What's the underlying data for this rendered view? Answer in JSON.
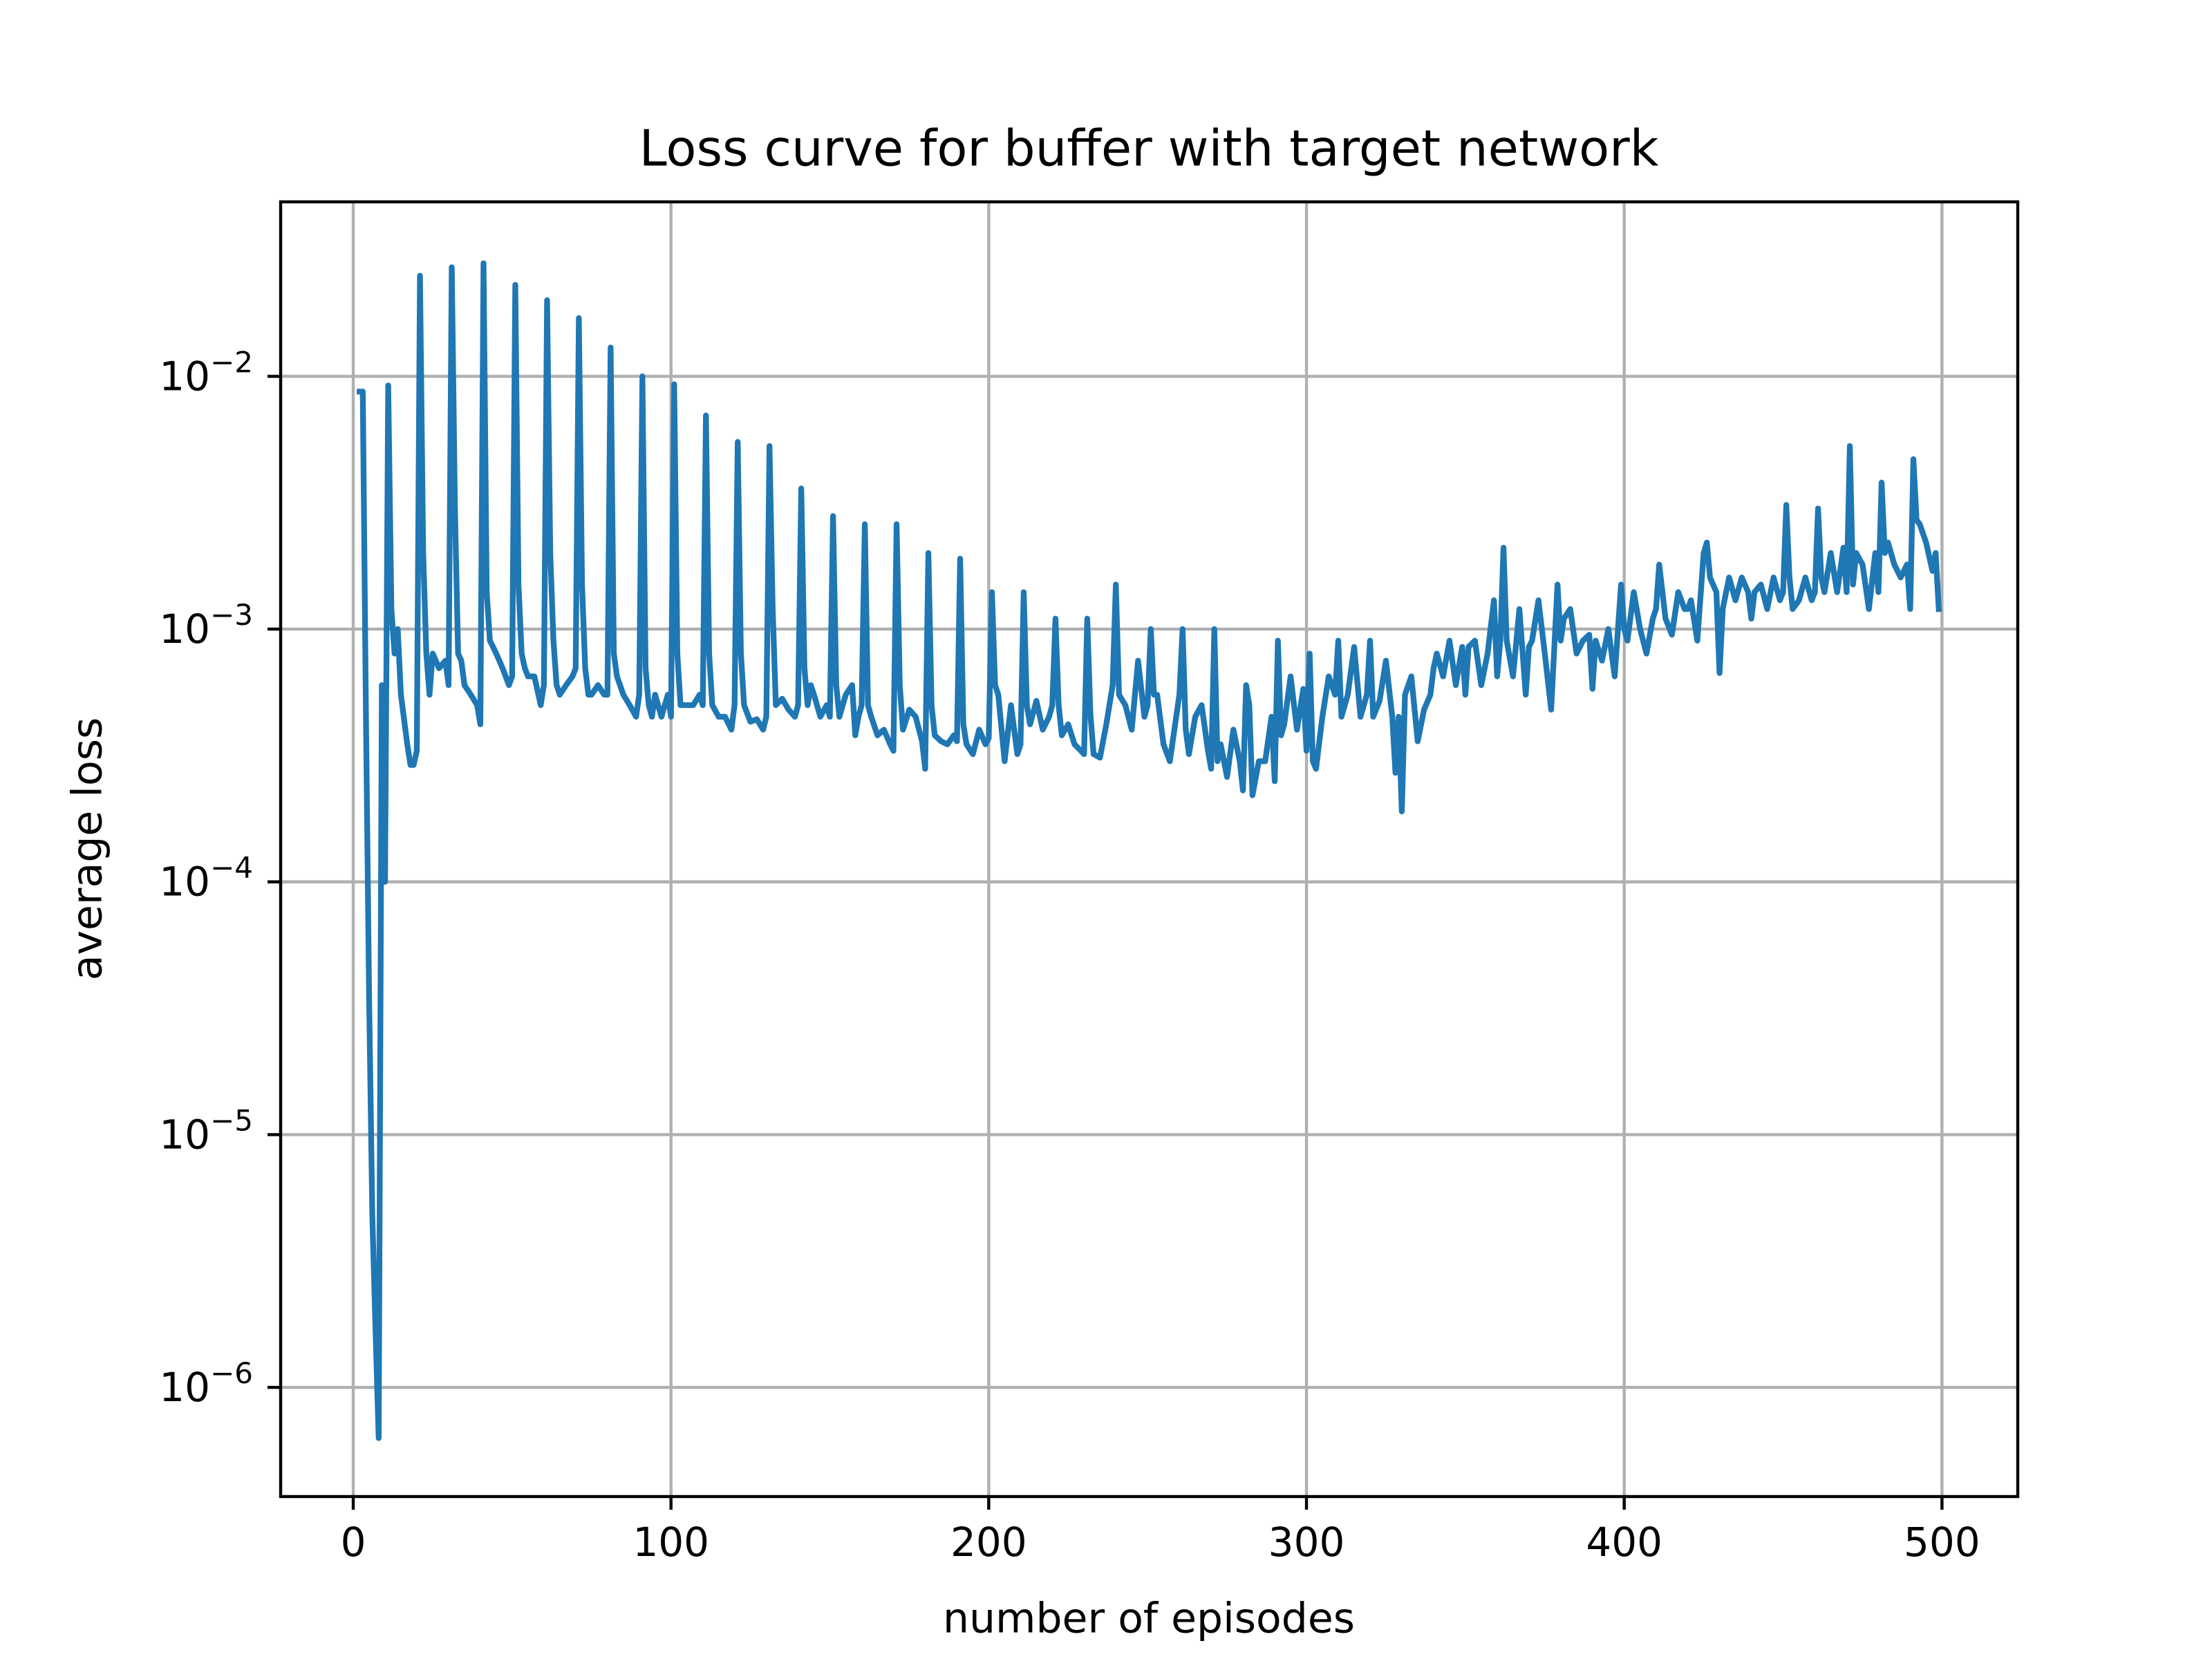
{
  "chart_data": {
    "type": "line",
    "title": "Loss curve for buffer with target network",
    "xlabel": "number of episodes",
    "ylabel": "average loss",
    "yscale": "log",
    "grid": true,
    "xlim": [
      -22.85,
      523.85
    ],
    "ylim": [
      3.7e-07,
      0.049
    ],
    "xticks": [
      0,
      100,
      200,
      300,
      400,
      500
    ],
    "yticks": [
      {
        "value": 1e-06,
        "label": "10−6"
      },
      {
        "value": 1e-05,
        "label": "10−5"
      },
      {
        "value": 0.0001,
        "label": "10−4"
      },
      {
        "value": 0.001,
        "label": "10−3"
      },
      {
        "value": 0.01,
        "label": "10−2"
      }
    ],
    "series": [
      {
        "color": "#1f77b4",
        "x": [
          2,
          3,
          4,
          5,
          6,
          7,
          8,
          9,
          10,
          11,
          12,
          13,
          14,
          15,
          17,
          18,
          19,
          20,
          21,
          22,
          23,
          24,
          25,
          27,
          29,
          30,
          31,
          32,
          33,
          34,
          35,
          37,
          39,
          40,
          41,
          42,
          43,
          44,
          45,
          47,
          49,
          50,
          51,
          52,
          53,
          54,
          55,
          57,
          59,
          60,
          61,
          62,
          63,
          64,
          65,
          67,
          69,
          70,
          71,
          72,
          73,
          74,
          75,
          77,
          79,
          80,
          81,
          82,
          83,
          85,
          87,
          89,
          90,
          91,
          92,
          93,
          94,
          95,
          97,
          99,
          100,
          101,
          102,
          103,
          105,
          107,
          109,
          110,
          111,
          112,
          113,
          115,
          117,
          119,
          120,
          121,
          122,
          123,
          125,
          127,
          129,
          130,
          131,
          132,
          133,
          135,
          137,
          139,
          140,
          141,
          142,
          143,
          144,
          145,
          147,
          149,
          150,
          151,
          152,
          153,
          155,
          157,
          158,
          159,
          160,
          161,
          162,
          163,
          165,
          167,
          169,
          170,
          171,
          172,
          173,
          175,
          177,
          179,
          180,
          181,
          182,
          183,
          185,
          187,
          189,
          190,
          191,
          192,
          193,
          195,
          197,
          199,
          200,
          201,
          202,
          203,
          205,
          207,
          209,
          210,
          211,
          212,
          213,
          215,
          217,
          219,
          220,
          221,
          222,
          223,
          225,
          227,
          229,
          230,
          231,
          232,
          233,
          235,
          237,
          239,
          240,
          241,
          243,
          245,
          247,
          249,
          250,
          251,
          252,
          253,
          255,
          257,
          259,
          260,
          261,
          262,
          263,
          265,
          267,
          269,
          270,
          271,
          272,
          273,
          275,
          277,
          279,
          280,
          281,
          282,
          283,
          285,
          287,
          289,
          290,
          291,
          292,
          293,
          295,
          297,
          299,
          300,
          301,
          302,
          303,
          305,
          307,
          309,
          310,
          311,
          313,
          315,
          317,
          319,
          320,
          321,
          323,
          325,
          327,
          328,
          329,
          330,
          331,
          333,
          335,
          337,
          339,
          340,
          341,
          343,
          345,
          347,
          349,
          350,
          351,
          353,
          355,
          357,
          359,
          360,
          361,
          362,
          363,
          365,
          367,
          369,
          370,
          371,
          373,
          375,
          377,
          379,
          380,
          381,
          383,
          385,
          387,
          389,
          390,
          391,
          393,
          395,
          397,
          399,
          400,
          401,
          403,
          405,
          407,
          409,
          410,
          411,
          413,
          415,
          417,
          419,
          420,
          421,
          423,
          425,
          426,
          427,
          429,
          430,
          431,
          433,
          435,
          437,
          439,
          440,
          441,
          443,
          445,
          447,
          449,
          450,
          451,
          452,
          453,
          455,
          457,
          459,
          460,
          461,
          462,
          463,
          465,
          467,
          469,
          470,
          471,
          472,
          473,
          475,
          477,
          479,
          480,
          481,
          482,
          483,
          485,
          487,
          489,
          490,
          491,
          492,
          493,
          495,
          497,
          498,
          499
        ],
        "values": [
          0.0087,
          0.0087,
          0.00045,
          3.4e-05,
          4.8e-06,
          1.7e-06,
          6.3e-07,
          0.0006,
          0.0001,
          0.0092,
          0.0012,
          0.0008,
          0.001,
          0.00055,
          0.00035,
          0.00029,
          0.00029,
          0.00033,
          0.025,
          0.002,
          0.0008,
          0.00055,
          0.0008,
          0.0007,
          0.00075,
          0.0006,
          0.027,
          0.003,
          0.0008,
          0.00075,
          0.0006,
          0.00055,
          0.0005,
          0.00042,
          0.028,
          0.0014,
          0.0009,
          0.00085,
          0.0008,
          0.0007,
          0.0006,
          0.00065,
          0.023,
          0.0015,
          0.0008,
          0.0007,
          0.00065,
          0.00065,
          0.0005,
          0.0006,
          0.02,
          0.002,
          0.0009,
          0.0006,
          0.00055,
          0.0006,
          0.00065,
          0.0007,
          0.017,
          0.0015,
          0.0007,
          0.00055,
          0.00055,
          0.0006,
          0.00055,
          0.00055,
          0.013,
          0.0008,
          0.00065,
          0.00055,
          0.0005,
          0.00045,
          0.00055,
          0.01,
          0.0007,
          0.0005,
          0.00045,
          0.00055,
          0.00045,
          0.00055,
          0.00045,
          0.0093,
          0.0008,
          0.0005,
          0.0005,
          0.0005,
          0.00055,
          0.0005,
          0.007,
          0.0008,
          0.0005,
          0.00045,
          0.00045,
          0.0004,
          0.0005,
          0.0055,
          0.0008,
          0.0005,
          0.00043,
          0.00044,
          0.0004,
          0.00045,
          0.0053,
          0.0012,
          0.0005,
          0.00053,
          0.00048,
          0.00045,
          0.0005,
          0.0036,
          0.0007,
          0.0005,
          0.0006,
          0.00055,
          0.00045,
          0.0005,
          0.00045,
          0.0028,
          0.0006,
          0.00045,
          0.00055,
          0.0006,
          0.00038,
          0.00045,
          0.0005,
          0.0026,
          0.0005,
          0.00045,
          0.00038,
          0.0004,
          0.00035,
          0.00033,
          0.0026,
          0.0006,
          0.0004,
          0.00048,
          0.00045,
          0.00036,
          0.00028,
          0.002,
          0.0005,
          0.00038,
          0.00036,
          0.00035,
          0.00038,
          0.00036,
          0.0019,
          0.00042,
          0.00035,
          0.00032,
          0.0004,
          0.00035,
          0.00037,
          0.0014,
          0.0006,
          0.00055,
          0.0003,
          0.0005,
          0.00032,
          0.00035,
          0.0014,
          0.0005,
          0.00042,
          0.00052,
          0.0004,
          0.00045,
          0.0005,
          0.0011,
          0.0005,
          0.00038,
          0.00042,
          0.00035,
          0.00033,
          0.00032,
          0.0011,
          0.00046,
          0.00032,
          0.00031,
          0.00042,
          0.0006,
          0.0015,
          0.00055,
          0.0005,
          0.0004,
          0.00075,
          0.00045,
          0.0005,
          0.001,
          0.00055,
          0.00055,
          0.00035,
          0.0003,
          0.00045,
          0.00055,
          0.001,
          0.0004,
          0.00032,
          0.00045,
          0.0005,
          0.00033,
          0.00028,
          0.001,
          0.0003,
          0.00035,
          0.00026,
          0.0004,
          0.0003,
          0.00023,
          0.0006,
          0.0005,
          0.00022,
          0.0003,
          0.0003,
          0.00045,
          0.00025,
          0.0009,
          0.00038,
          0.00042,
          0.00065,
          0.0004,
          0.00058,
          0.00033,
          0.0008,
          0.0003,
          0.00028,
          0.00045,
          0.00065,
          0.00055,
          0.0009,
          0.00045,
          0.00055,
          0.00085,
          0.00045,
          0.00055,
          0.0009,
          0.00045,
          0.00052,
          0.00075,
          0.00045,
          0.00027,
          0.00045,
          0.00019,
          0.00055,
          0.00065,
          0.00036,
          0.00048,
          0.00055,
          0.0007,
          0.0008,
          0.00065,
          0.0009,
          0.0006,
          0.00085,
          0.00055,
          0.00085,
          0.0009,
          0.0006,
          0.0008,
          0.0013,
          0.00065,
          0.0009,
          0.0021,
          0.0009,
          0.00065,
          0.0012,
          0.00055,
          0.00085,
          0.0009,
          0.0013,
          0.0008,
          0.00048,
          0.0015,
          0.0009,
          0.0011,
          0.0012,
          0.0008,
          0.0009,
          0.00095,
          0.00058,
          0.0009,
          0.00075,
          0.001,
          0.00065,
          0.0015,
          0.001,
          0.0009,
          0.0014,
          0.001,
          0.0008,
          0.0011,
          0.0012,
          0.0018,
          0.0011,
          0.00095,
          0.0014,
          0.0012,
          0.0012,
          0.0013,
          0.0009,
          0.002,
          0.0022,
          0.0016,
          0.0014,
          0.00067,
          0.0012,
          0.0016,
          0.0013,
          0.0016,
          0.0014,
          0.0011,
          0.0014,
          0.0015,
          0.0012,
          0.0016,
          0.0013,
          0.0014,
          0.0031,
          0.0016,
          0.0012,
          0.0013,
          0.0016,
          0.0013,
          0.0014,
          0.003,
          0.0016,
          0.0014,
          0.002,
          0.0014,
          0.0021,
          0.0014,
          0.0053,
          0.0015,
          0.002,
          0.0018,
          0.0012,
          0.002,
          0.0014,
          0.0038,
          0.002,
          0.0022,
          0.0018,
          0.0016,
          0.0018,
          0.0012,
          0.0047,
          0.0027,
          0.0026,
          0.0022,
          0.0017,
          0.002,
          0.0012
        ]
      }
    ]
  }
}
